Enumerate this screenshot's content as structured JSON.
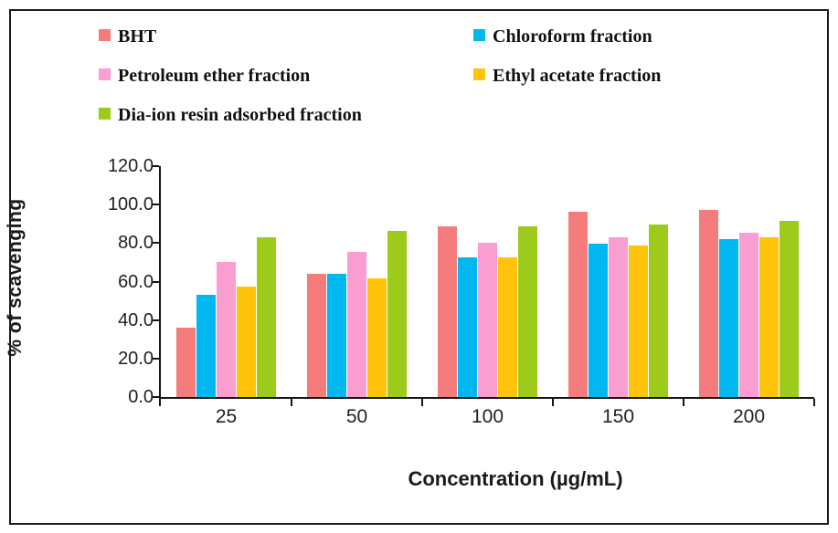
{
  "chart_data": {
    "type": "bar",
    "title": "",
    "xlabel": "Concentration (µg/mL)",
    "ylabel": "% of scavenging",
    "categories": [
      "25",
      "50",
      "100",
      "150",
      "200"
    ],
    "series": [
      {
        "name": "BHT",
        "color": "#F47C7C",
        "values": [
          36.3,
          63.9,
          88.6,
          96.2,
          97.2
        ]
      },
      {
        "name": "Chloroform fraction",
        "color": "#00B7EF",
        "values": [
          53.2,
          63.9,
          72.5,
          79.9,
          82.2
        ]
      },
      {
        "name": "Petroleum ether fraction",
        "color": "#FA9DD1",
        "values": [
          70.4,
          75.5,
          80.0,
          83.2,
          85.4
        ]
      },
      {
        "name": "Ethyl acetate fraction",
        "color": "#FFC30B",
        "values": [
          57.3,
          61.9,
          72.5,
          78.9,
          83.1
        ]
      },
      {
        "name": "Dia-ion resin adsorbed fraction",
        "color": "#9CCB1C",
        "values": [
          83.1,
          86.5,
          88.8,
          89.6,
          91.8
        ]
      }
    ],
    "ylim": [
      0,
      120
    ],
    "yticks": [
      0,
      20,
      40,
      60,
      80,
      100,
      120
    ],
    "ytick_labels": [
      "0.0",
      "20.0",
      "40.0",
      "60.0",
      "80.0",
      "100.0",
      "120.0"
    ],
    "grid": false,
    "legend_position": "top"
  },
  "frame": {
    "border_color": "#1c1c1c",
    "background": "#ffffff"
  }
}
